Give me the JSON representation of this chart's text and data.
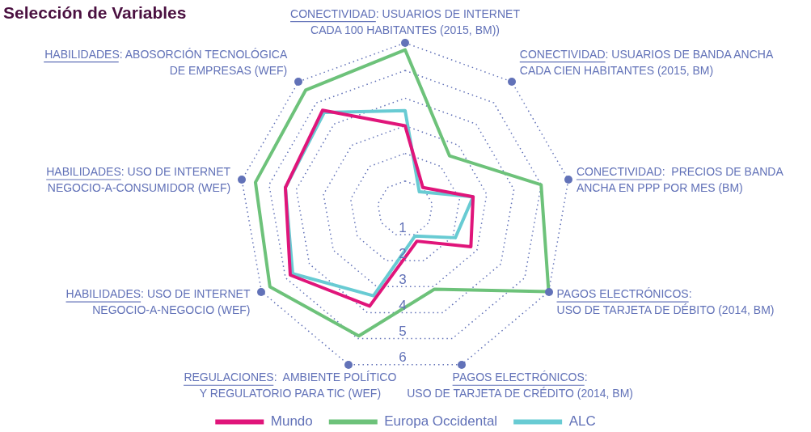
{
  "chart_data": {
    "type": "radar",
    "title": "Selección de Variables",
    "categories": [
      "CONECTIVIDAD: USUARIOS DE INTERNET\nCADA 100 HABITANTES (2015, BM))",
      "CONECTIVIDAD: USUARIOS DE BANDA ANCHA\nCADA CIEN HABITANTES (2015, BM)",
      "CONECTIVIDAD:  PRECIOS DE BANDA\nANCHA EN PPP POR MES (BM)",
      "PAGOS ELECTRÓNICOS:\nUSO DE TARJETA DE DÉBITO (2014, BM)",
      "PAGOS ELECTRÓNICOS:\nUSO DE TARJETA DE CRÉDITO (2014, BM)",
      "REGULACIONES:  AMBIENTE POLÍTICO\nY REGULATORIO PARA TIC (WEF)",
      "HABILIDADES: USO DE INTERNET\nNEGOCIO-A-NEGOCIO (WEF)",
      "HABILIDADES: USO DE INTERNET\nNEGOCIO-A-CONSUMIDOR (WEF)",
      "HABILIDADES: ABOSORCIÓN TECNOLÓGICA\nDE EMPRESAS (WEF)"
    ],
    "series": [
      {
        "name": "Mundo",
        "color": "#e0157a",
        "values": [
          3.0,
          1.0,
          2.5,
          2.75,
          1.25,
          3.75,
          4.8,
          4.4,
          4.65
        ]
      },
      {
        "name": "Europa Occidental",
        "color": "#6dc27a",
        "values": [
          5.75,
          2.5,
          5.0,
          6.0,
          3.1,
          4.9,
          5.65,
          5.5,
          5.6
        ]
      },
      {
        "name": "ALC",
        "color": "#68cbd3",
        "values": [
          3.55,
          0.8,
          2.5,
          2.1,
          1.05,
          3.35,
          4.7,
          4.4,
          4.55
        ]
      }
    ],
    "ylim": [
      0,
      6
    ],
    "yticks": [
      1,
      2,
      3,
      4,
      5,
      6
    ],
    "grid": true,
    "legend": "bottom",
    "marker": "none"
  }
}
